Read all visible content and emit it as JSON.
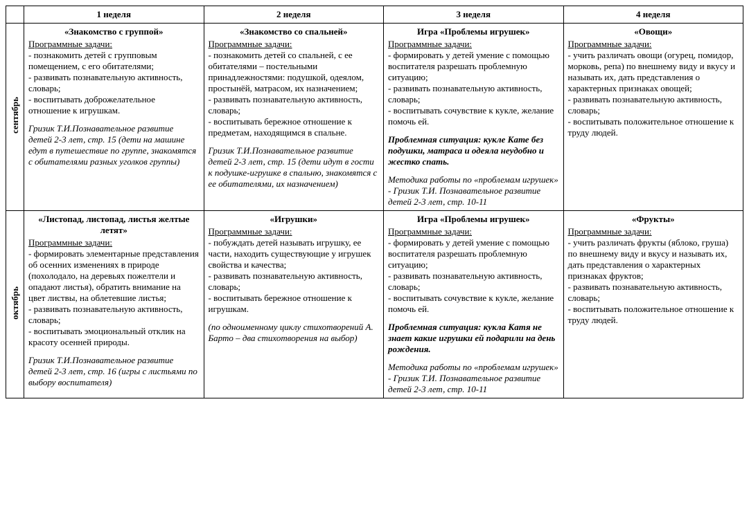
{
  "headers": {
    "month_blank": "",
    "week1": "1 неделя",
    "week2": "2 неделя",
    "week3": "3 неделя",
    "week4": "4 неделя"
  },
  "tasks_label": "Программные задачи:",
  "rows": {
    "sep": {
      "month": "сентябрь",
      "w1": {
        "title": "«Знакомство с группой»",
        "tasks": [
          "- познакомить детей с групповым помещением, с его обитателями;",
          "- развивать познавательную активность, словарь;",
          "- воспитывать доброжелательное отношение к игрушкам."
        ],
        "ref": "Гризик Т.И.Познавательное развитие детей 2-3 лет, стр. 15 (дети на машине едут в путешествие по группе, знакомятся с обитателями разных уголков группы)"
      },
      "w2": {
        "title": "«Знакомство со спальней»",
        "tasks": [
          "- познакомить детей со спальней, с ее обитателями – постельными принадлежностями: подушкой, одеялом, простынёй, матрасом, их назначением;",
          "- развивать познавательную активность, словарь;",
          "- воспитывать бережное отношение к предметам, находящимся в спальне."
        ],
        "ref": "Гризик Т.И.Познавательное развитие детей 2-3 лет, стр. 15 (дети идут в гости к подушке-игрушке в спальню, знакомятся с ее обитателями, их назначением)"
      },
      "w3": {
        "title": "Игра «Проблемы игрушек»",
        "tasks": [
          "-  формировать у детей умение с помощью воспитателя разрешать проблемную ситуацию;",
          "- развивать познавательную активность, словарь;",
          "- воспитывать сочувствие к кукле, желание помочь ей."
        ],
        "situation": "Проблемная ситуация: кукле Кате без подушки, матраса и одеяла неудобно и жестко спать.",
        "ref": "Методика работы по «проблемам игрушек» -  Гризик Т.И. Познавательное развитие детей 2-3 лет, стр. 10-11"
      },
      "w4": {
        "title": "«Овощи»",
        "tasks": [
          "- учить различать овощи (огурец, помидор, морковь, репа) по внешнему виду и вкусу и называть их, дать представления о характерных признаках овощей;",
          "- развивать познавательную активность, словарь;",
          "- воспитывать положительное отношение к труду людей."
        ]
      }
    },
    "oct": {
      "month": "октябрь",
      "w1": {
        "title": "«Листопад, листопад, листья желтые летят»",
        "tasks": [
          "- формировать элементарные представления об осенних изменениях в природе (похолодало, на деревьях пожелтели и опадают листья), обратить внимание на цвет листвы, на облетевшие листья;",
          "- развивать  познавательную активность, словарь;",
          "- воспитывать эмоциональный отклик на красоту осенней природы."
        ],
        "ref": "Гризик Т.И.Познавательное развитие детей 2-3 лет, стр. 16 (игры с листьями по выбору воспитателя)"
      },
      "w2": {
        "title": "«Игрушки»",
        "tasks": [
          "- побуждать детей называть игрушку, ее части, находить существующие у игрушек свойства и качества;",
          "- развивать познавательную активность, словарь;",
          "- воспитывать бережное отношение к игрушкам."
        ],
        "ref": "(по одноименному циклу стихотворений А. Барто – два стихотворения на выбор)"
      },
      "w3": {
        "title": "Игра «Проблемы игрушек»",
        "tasks": [
          "-  формировать у детей умение с помощью воспитателя разрешать проблемную ситуацию;",
          "- развивать познавательную активность, словарь;",
          "- воспитывать сочувствие к кукле, желание помочь ей."
        ],
        "situation": "Проблемная ситуация: кукла Катя не знает какие игрушки ей подарили на день рождения.",
        "ref": "Методика работы по «проблемам игрушек» -  Гризик Т.И. Познавательное развитие детей 2-3 лет, стр. 10-11"
      },
      "w4": {
        "title": "«Фрукты»",
        "tasks": [
          "- учить различать фрукты (яблоко, груша) по внешнему виду и вкусу и называть их, дать представления о характерных признаках фруктов;",
          "- развивать познавательную активность, словарь;",
          "- воспитывать положительное отношение к труду людей."
        ]
      }
    }
  }
}
